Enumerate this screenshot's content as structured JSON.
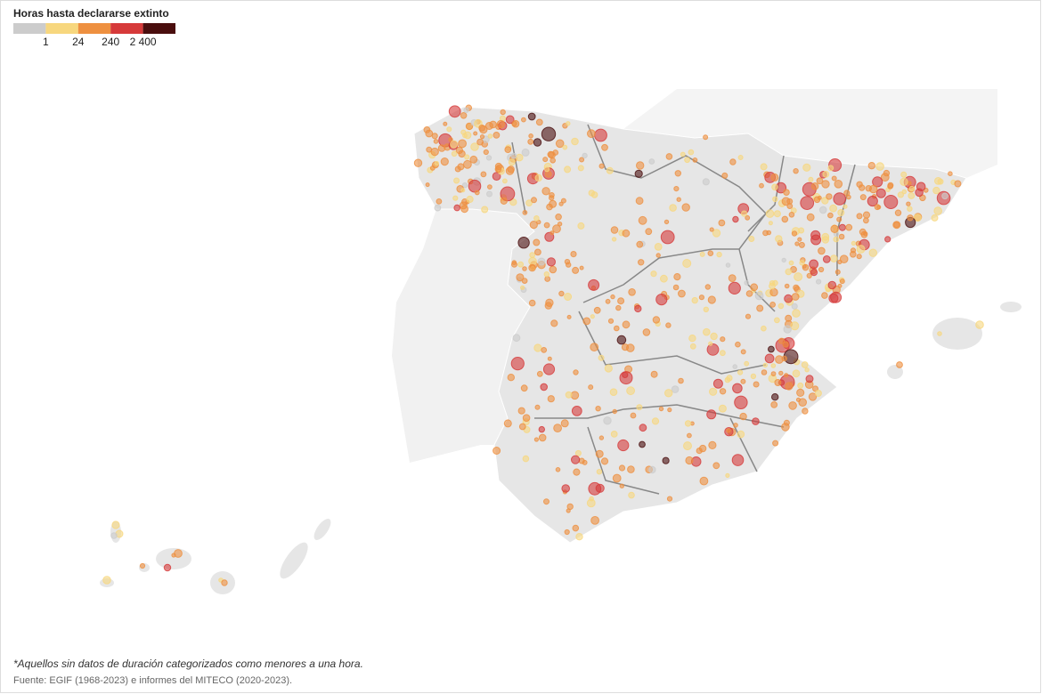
{
  "legend": {
    "title": "Horas hasta declararse extinto",
    "colors": [
      "#cccccc",
      "#f7d77e",
      "#ee9040",
      "#d63a3a",
      "#4a0e0e"
    ],
    "ticks": [
      "1",
      "24",
      "240",
      "2 400"
    ]
  },
  "footnote": "*Aquellos sin datos de duración categorizados como menores a una hora.",
  "source": "Fuente: EGIF (1968-2023) e informes del MITECO (2020-2023)."
}
